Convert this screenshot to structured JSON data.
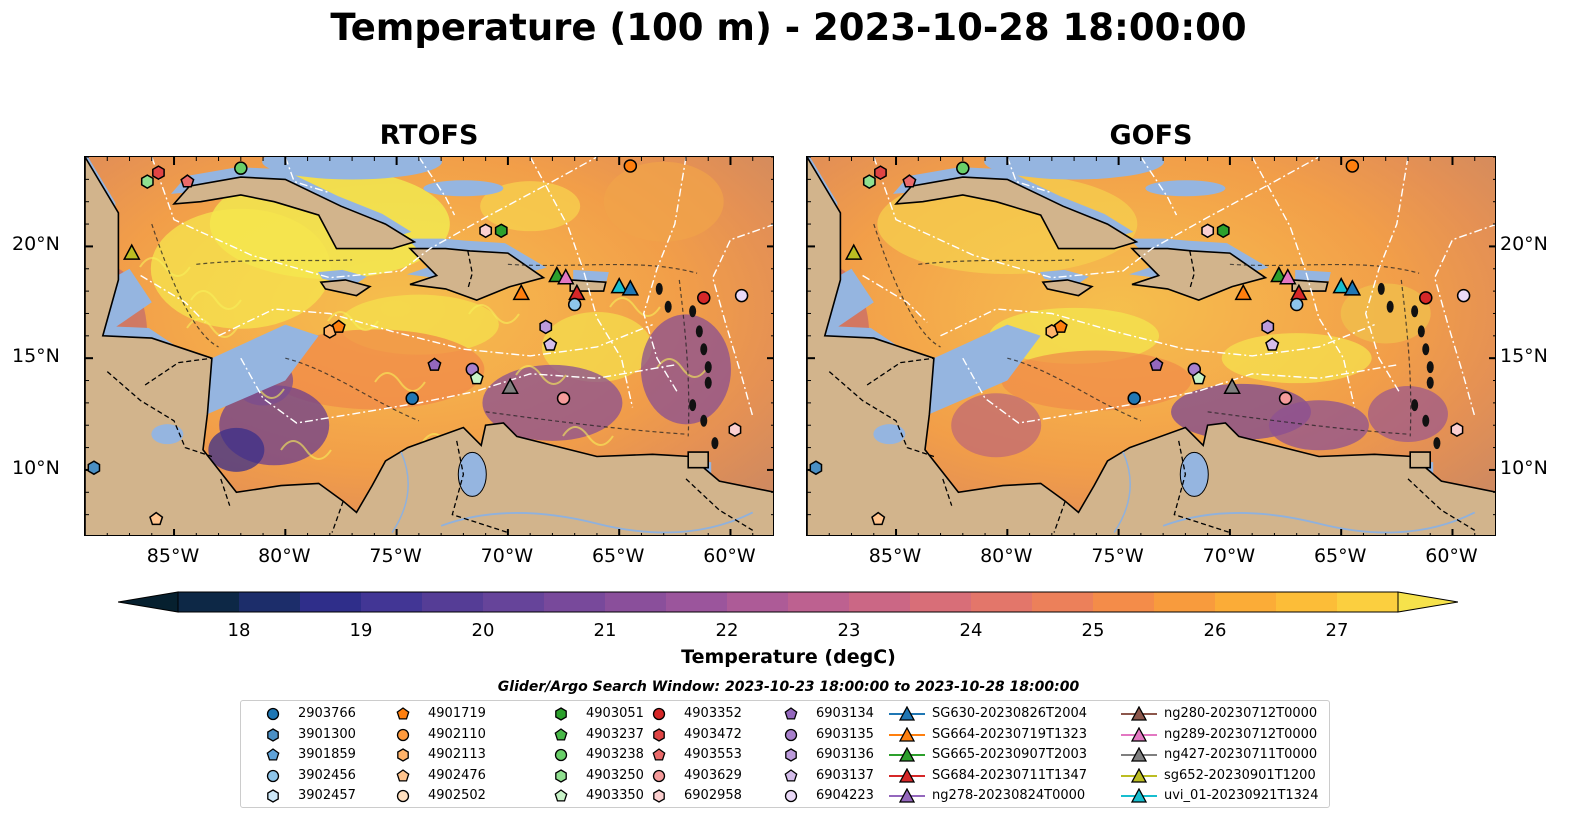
{
  "title": "Temperature (100 m) - 2023-10-28 18:00:00",
  "panels": [
    {
      "id": "left",
      "title": "RTOFS"
    },
    {
      "id": "right",
      "title": "GOFS"
    }
  ],
  "axes": {
    "lon_ticks": [
      "85°W",
      "80°W",
      "75°W",
      "70°W",
      "65°W",
      "60°W"
    ],
    "lat_ticks": [
      "20°N",
      "15°N",
      "10°N"
    ],
    "lon_range": [
      -89,
      -58
    ],
    "lat_range": [
      7,
      24
    ]
  },
  "colorbar": {
    "label": "Temperature (degC)",
    "ticks": [
      "18",
      "19",
      "20",
      "21",
      "22",
      "23",
      "24",
      "25",
      "26",
      "27"
    ],
    "min": 18,
    "max": 27,
    "extend": "both",
    "colormap": "thermal"
  },
  "colors": {
    "land": "#d2b48c",
    "shelf": "#95b5e0",
    "deep_pacific": "#0d2637",
    "boundary": "#ffffff"
  },
  "search_window": "Glider/Argo Search Window: 2023-10-23 18:00:00 to 2023-10-28 18:00:00",
  "legend": [
    {
      "label": "2903766",
      "color": "#1f77b4",
      "marker": "circle"
    },
    {
      "label": "3901300",
      "color": "#4a8fc4",
      "marker": "hexagon"
    },
    {
      "label": "3901859",
      "color": "#5fa2d8",
      "marker": "pentagon"
    },
    {
      "label": "3902456",
      "color": "#8ec5ea",
      "marker": "circle"
    },
    {
      "label": "3902457",
      "color": "#cde7f7",
      "marker": "hexagon"
    },
    {
      "label": "4901719",
      "color": "#ff7f0e",
      "marker": "pentagon"
    },
    {
      "label": "4902110",
      "color": "#ff9a3c",
      "marker": "circle"
    },
    {
      "label": "4902113",
      "color": "#ffb36a",
      "marker": "hexagon"
    },
    {
      "label": "4902476",
      "color": "#ffc48e",
      "marker": "pentagon"
    },
    {
      "label": "4902502",
      "color": "#ffe0c0",
      "marker": "circle"
    },
    {
      "label": "4903051",
      "color": "#2ca02c",
      "marker": "hexagon"
    },
    {
      "label": "4903237",
      "color": "#48b848",
      "marker": "pentagon"
    },
    {
      "label": "4903238",
      "color": "#69cf69",
      "marker": "circle"
    },
    {
      "label": "4903250",
      "color": "#90e090",
      "marker": "hexagon"
    },
    {
      "label": "4903350",
      "color": "#c8f3c8",
      "marker": "pentagon"
    },
    {
      "label": "4903352",
      "color": "#d62728",
      "marker": "circle"
    },
    {
      "label": "4903472",
      "color": "#e04444",
      "marker": "hexagon"
    },
    {
      "label": "4903553",
      "color": "#ea6a6a",
      "marker": "pentagon"
    },
    {
      "label": "4903629",
      "color": "#f59b9b",
      "marker": "circle"
    },
    {
      "label": "6902958",
      "color": "#fbd0d0",
      "marker": "hexagon"
    },
    {
      "label": "6903134",
      "color": "#9467bd",
      "marker": "pentagon"
    },
    {
      "label": "6903135",
      "color": "#a880cc",
      "marker": "circle"
    },
    {
      "label": "6903136",
      "color": "#bc9bdb",
      "marker": "hexagon"
    },
    {
      "label": "6903137",
      "color": "#d4bdea",
      "marker": "pentagon"
    },
    {
      "label": "6904223",
      "color": "#ead9f7",
      "marker": "circle"
    },
    {
      "label": "SG630-20230826T2004",
      "color": "#1f77b4",
      "marker": "triangle"
    },
    {
      "label": "SG664-20230719T1323",
      "color": "#ff7f0e",
      "marker": "triangle"
    },
    {
      "label": "SG665-20230907T2003",
      "color": "#2ca02c",
      "marker": "triangle"
    },
    {
      "label": "SG684-20230711T1347",
      "color": "#d62728",
      "marker": "triangle"
    },
    {
      "label": "ng278-20230824T0000",
      "color": "#9467bd",
      "marker": "triangle"
    },
    {
      "label": "ng280-20230712T0000",
      "color": "#8c564b",
      "marker": "triangle"
    },
    {
      "label": "ng289-20230712T0000",
      "color": "#e377c2",
      "marker": "triangle"
    },
    {
      "label": "ng427-20230711T0000",
      "color": "#7f7f7f",
      "marker": "triangle"
    },
    {
      "label": "sg652-20230901T1200",
      "color": "#bcbd22",
      "marker": "triangle"
    },
    {
      "label": "uvi_01-20230921T1324",
      "color": "#17becf",
      "marker": "triangle"
    }
  ],
  "observations": [
    {
      "color": "#ff7f0e",
      "marker": "circle",
      "lon": -64.5,
      "lat": 23.6
    },
    {
      "color": "#69cf69",
      "marker": "circle",
      "lon": -82.0,
      "lat": 23.5
    },
    {
      "color": "#e04444",
      "marker": "hexagon",
      "lon": -85.7,
      "lat": 23.3
    },
    {
      "color": "#ea6a6a",
      "marker": "pentagon",
      "lon": -84.4,
      "lat": 22.9
    },
    {
      "color": "#90e090",
      "marker": "hexagon",
      "lon": -86.2,
      "lat": 22.9
    },
    {
      "color": "#bcbd22",
      "marker": "triangle",
      "lon": -86.9,
      "lat": 19.7
    },
    {
      "color": "#fbd0d0",
      "marker": "hexagon",
      "lon": -71.0,
      "lat": 20.7
    },
    {
      "color": "#2ca02c",
      "marker": "hexagon",
      "lon": -70.3,
      "lat": 20.7
    },
    {
      "color": "#2ca02c",
      "marker": "triangle",
      "lon": -67.8,
      "lat": 18.7
    },
    {
      "color": "#e377c2",
      "marker": "triangle",
      "lon": -67.4,
      "lat": 18.6
    },
    {
      "color": "#ff7f0e",
      "marker": "triangle",
      "lon": -69.4,
      "lat": 17.9
    },
    {
      "color": "#d62728",
      "marker": "triangle",
      "lon": -66.9,
      "lat": 17.9
    },
    {
      "color": "#8ec5ea",
      "marker": "circle",
      "lon": -67.0,
      "lat": 17.4
    },
    {
      "color": "#17becf",
      "marker": "triangle",
      "lon": -65.0,
      "lat": 18.2
    },
    {
      "color": "#1f77b4",
      "marker": "triangle",
      "lon": -64.5,
      "lat": 18.1
    },
    {
      "color": "#d62728",
      "marker": "circle",
      "lon": -61.2,
      "lat": 17.7
    },
    {
      "color": "#ead9f7",
      "marker": "circle",
      "lon": -59.5,
      "lat": 17.8
    },
    {
      "color": "#ffb36a",
      "marker": "hexagon",
      "lon": -78.0,
      "lat": 16.2
    },
    {
      "color": "#ff7f0e",
      "marker": "pentagon",
      "lon": -77.6,
      "lat": 16.4
    },
    {
      "color": "#bc9bdb",
      "marker": "hexagon",
      "lon": -68.3,
      "lat": 16.4
    },
    {
      "color": "#d4bdea",
      "marker": "pentagon",
      "lon": -68.1,
      "lat": 15.6
    },
    {
      "color": "#9467bd",
      "marker": "pentagon",
      "lon": -73.3,
      "lat": 14.7
    },
    {
      "color": "#a880cc",
      "marker": "circle",
      "lon": -71.6,
      "lat": 14.5
    },
    {
      "color": "#c8f3c8",
      "marker": "pentagon",
      "lon": -71.4,
      "lat": 14.1
    },
    {
      "color": "#7f7f7f",
      "marker": "triangle",
      "lon": -69.9,
      "lat": 13.7
    },
    {
      "color": "#1f77b4",
      "marker": "circle",
      "lon": -74.3,
      "lat": 13.2
    },
    {
      "color": "#f59b9b",
      "marker": "circle",
      "lon": -67.5,
      "lat": 13.2
    },
    {
      "color": "#fbd0d0",
      "marker": "hexagon",
      "lon": -59.8,
      "lat": 11.8
    },
    {
      "color": "#4a8fc4",
      "marker": "hexagon",
      "lon": -88.6,
      "lat": 10.1
    },
    {
      "color": "#ffc48e",
      "marker": "pentagon",
      "lon": -85.8,
      "lat": 7.8
    }
  ]
}
